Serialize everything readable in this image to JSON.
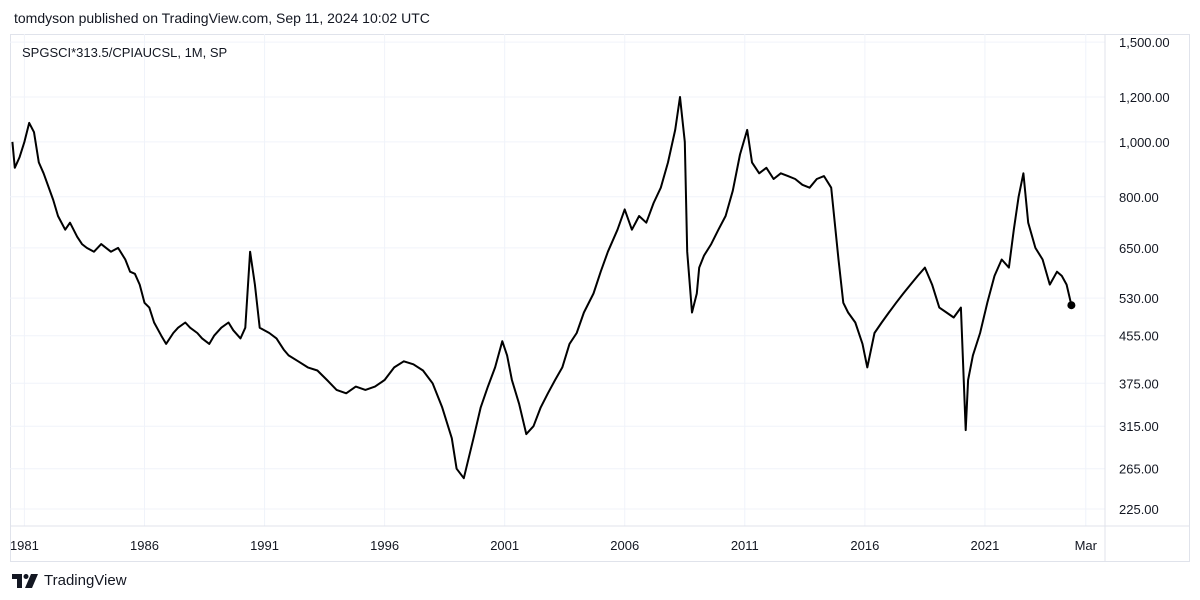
{
  "header": {
    "published_text": "tomdyson published on TradingView.com, Sep 11, 2024 10:02 UTC"
  },
  "footer": {
    "brand": "TradingView",
    "logo_icon": "tradingview-logo-icon"
  },
  "chart_data": {
    "type": "line",
    "title": "SPGSCI*313.5/CPIAUCSL, 1M, SP",
    "scale": "log",
    "line_color": "#000000",
    "y_ticks": [
      "1,500.00",
      "1,200.00",
      "1,000.00",
      "800.00",
      "650.00",
      "530.00",
      "455.00",
      "375.00",
      "315.00",
      "265.00",
      "225.00"
    ],
    "x_ticks": [
      "1981",
      "1986",
      "1991",
      "1996",
      "2001",
      "2006",
      "2011",
      "2016",
      "2021",
      "Mar"
    ],
    "ylim": [
      210,
      1550
    ],
    "xlim": [
      1980.4,
      2026.0
    ],
    "x": [
      1980.5,
      1980.6,
      1980.8,
      1981.0,
      1981.2,
      1981.4,
      1981.6,
      1981.8,
      1982.2,
      1982.4,
      1982.7,
      1982.9,
      1983.2,
      1983.4,
      1983.6,
      1983.9,
      1984.2,
      1984.4,
      1984.6,
      1984.9,
      1985.2,
      1985.4,
      1985.6,
      1985.8,
      1986.0,
      1986.2,
      1986.4,
      1986.7,
      1986.9,
      1987.2,
      1987.4,
      1987.7,
      1987.9,
      1988.2,
      1988.4,
      1988.7,
      1988.9,
      1989.2,
      1989.5,
      1989.7,
      1990.0,
      1990.2,
      1990.4,
      1990.6,
      1990.8,
      1991.2,
      1991.5,
      1991.8,
      1992.0,
      1992.4,
      1992.8,
      1993.2,
      1993.6,
      1994.0,
      1994.4,
      1994.8,
      1995.2,
      1995.6,
      1996.0,
      1996.4,
      1996.8,
      1997.2,
      1997.6,
      1998.0,
      1998.4,
      1998.8,
      1999.0,
      1999.3,
      1999.7,
      2000.0,
      2000.3,
      2000.6,
      2000.9,
      2001.1,
      2001.3,
      2001.6,
      2001.9,
      2002.2,
      2002.5,
      2002.8,
      2003.1,
      2003.4,
      2003.7,
      2004.0,
      2004.3,
      2004.7,
      2005.0,
      2005.3,
      2005.7,
      2006.0,
      2006.3,
      2006.6,
      2006.9,
      2007.2,
      2007.5,
      2007.8,
      2008.1,
      2008.3,
      2008.5,
      2008.6,
      2008.8,
      2009.0,
      2009.1,
      2009.3,
      2009.6,
      2009.9,
      2010.2,
      2010.5,
      2010.8,
      2011.1,
      2011.3,
      2011.6,
      2011.9,
      2012.2,
      2012.5,
      2012.8,
      2013.1,
      2013.4,
      2013.7,
      2014.0,
      2014.3,
      2014.6,
      2014.9,
      2015.1,
      2015.3,
      2015.6,
      2015.9,
      2016.1,
      2016.4,
      2016.7,
      2017.0,
      2017.3,
      2017.6,
      2017.9,
      2018.2,
      2018.5,
      2018.8,
      2019.1,
      2019.4,
      2019.7,
      2020.0,
      2020.2,
      2020.3,
      2020.5,
      2020.8,
      2021.1,
      2021.4,
      2021.7,
      2022.0,
      2022.2,
      2022.4,
      2022.6,
      2022.8,
      2023.1,
      2023.4,
      2023.7,
      2024.0,
      2024.2,
      2024.4,
      2024.6
    ],
    "values": [
      1000,
      900,
      940,
      1000,
      1080,
      1040,
      920,
      880,
      790,
      740,
      700,
      720,
      680,
      660,
      650,
      640,
      660,
      650,
      640,
      650,
      620,
      590,
      585,
      560,
      520,
      510,
      480,
      455,
      440,
      460,
      470,
      480,
      470,
      460,
      450,
      440,
      455,
      470,
      480,
      465,
      450,
      470,
      640,
      560,
      470,
      460,
      450,
      430,
      420,
      410,
      400,
      395,
      380,
      365,
      360,
      370,
      365,
      370,
      380,
      400,
      410,
      405,
      395,
      375,
      340,
      300,
      265,
      255,
      300,
      340,
      370,
      400,
      445,
      420,
      380,
      345,
      305,
      315,
      340,
      360,
      380,
      400,
      440,
      460,
      500,
      540,
      590,
      640,
      700,
      760,
      700,
      740,
      720,
      780,
      830,
      920,
      1050,
      1200,
      1000,
      640,
      500,
      540,
      600,
      630,
      660,
      700,
      740,
      820,
      950,
      1050,
      920,
      880,
      900,
      860,
      880,
      870,
      860,
      840,
      830,
      860,
      870,
      830,
      620,
      520,
      500,
      480,
      440,
      400,
      460,
      480,
      500,
      520,
      540,
      560,
      580,
      600,
      560,
      510,
      500,
      490,
      510,
      310,
      380,
      420,
      460,
      520,
      580,
      620,
      600,
      700,
      800,
      880,
      720,
      650,
      620,
      560,
      590,
      580,
      560,
      515
    ]
  }
}
